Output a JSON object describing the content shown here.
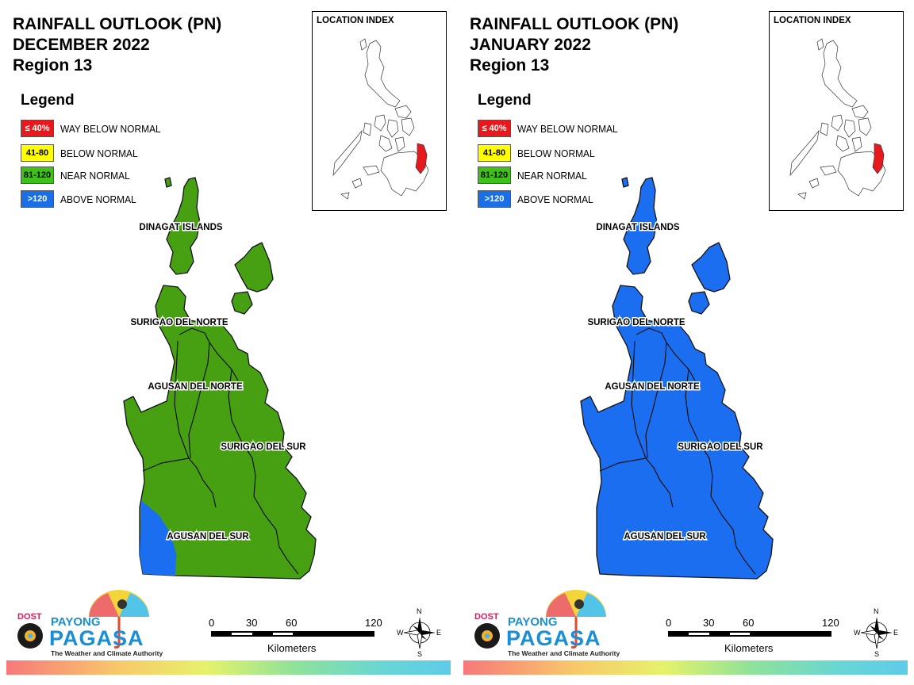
{
  "panels": [
    {
      "title_line1": "RAINFALL OUTLOOK (PN)",
      "title_line2": "DECEMBER 2022",
      "title_line3": "Region 13",
      "provinces": [
        {
          "name": "DINAGAT ISLANDS",
          "category": "near"
        },
        {
          "name": "SURIGAO DEL NORTE",
          "category": "near"
        },
        {
          "name": "AGUSAN DEL NORTE",
          "category": "near"
        },
        {
          "name": "SURIGAO DEL SUR",
          "category": "near"
        },
        {
          "name": "AGUSAN DEL SUR",
          "category": "near",
          "note": "south-west corner above normal"
        }
      ]
    },
    {
      "title_line1": "RAINFALL OUTLOOK (PN)",
      "title_line2": "JANUARY 2022",
      "title_line3": "Region 13",
      "provinces": [
        {
          "name": "DINAGAT ISLANDS",
          "category": "above"
        },
        {
          "name": "SURIGAO DEL NORTE",
          "category": "above"
        },
        {
          "name": "AGUSAN DEL NORTE",
          "category": "above"
        },
        {
          "name": "SURIGAO DEL SUR",
          "category": "above"
        },
        {
          "name": "AGUSAN DEL SUR",
          "category": "above"
        }
      ]
    }
  ],
  "legend": {
    "title": "Legend",
    "items": [
      {
        "swatch": "≤ 40%",
        "label": "WAY BELOW NORMAL",
        "color": "#e8191c",
        "text_color": "#ffffff"
      },
      {
        "swatch": "41-80",
        "label": "BELOW NORMAL",
        "color": "#ffff00",
        "text_color": "#000000"
      },
      {
        "swatch": "81-120",
        "label": "NEAR NORMAL",
        "color": "#3ec21b",
        "text_color": "#000000"
      },
      {
        "swatch": ">120",
        "label": "ABOVE NORMAL",
        "color": "#1a6ee6",
        "text_color": "#ffffff"
      }
    ]
  },
  "index_map": {
    "title": "LOCATION INDEX",
    "highlight_color": "#e8191c"
  },
  "scale_bar": {
    "ticks": [
      "0",
      "30",
      "60",
      "120"
    ],
    "unit": "Kilometers"
  },
  "compass": {
    "n": "N",
    "s": "S",
    "e": "E",
    "w": "W"
  },
  "logo": {
    "dost": "DOST",
    "payong": "PAYONG",
    "pagasa": "PAGASA",
    "tagline": "The Weather and Climate Authority"
  },
  "colors": {
    "near_normal_fill": "#47a012",
    "above_normal_fill": "#1b6ef0"
  }
}
